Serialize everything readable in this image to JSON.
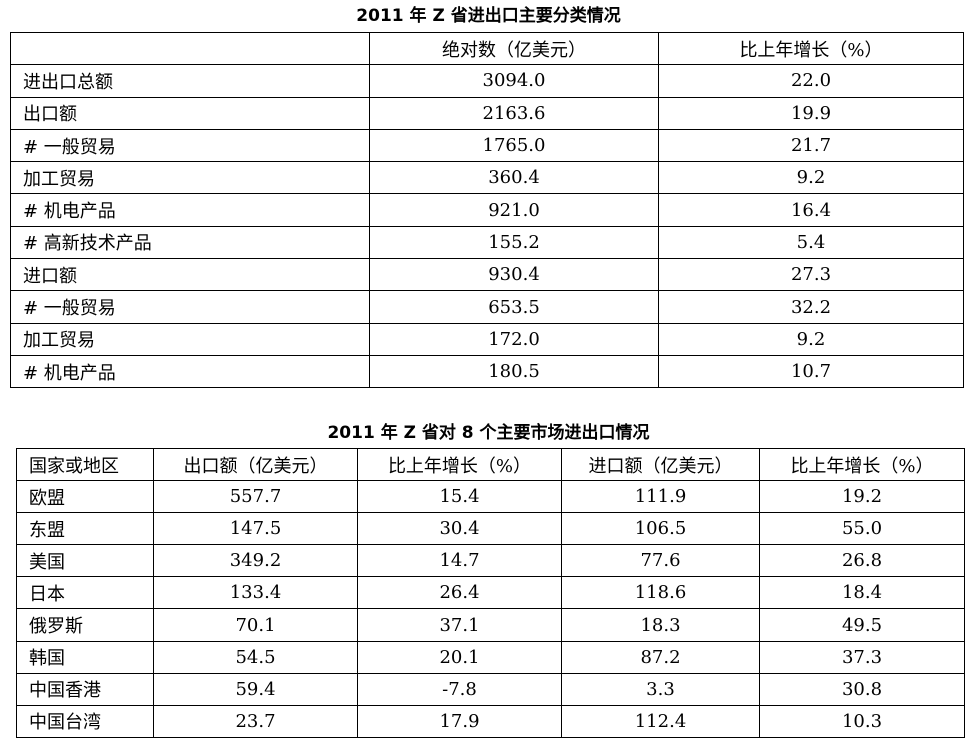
{
  "table1": {
    "title": "2011 年 Z 省进出口主要分类情况",
    "headers": [
      "",
      "绝对数（亿美元）",
      "比上年增长（%）"
    ],
    "rows": [
      [
        "进出口总额",
        "3094.0",
        "22.0"
      ],
      [
        "出口额",
        "2163.6",
        "19.9"
      ],
      [
        " # 一般贸易",
        "1765.0",
        "21.7"
      ],
      [
        "加工贸易",
        "360.4",
        "9.2"
      ],
      [
        " # 机电产品",
        "921.0",
        "16.4"
      ],
      [
        " # 高新技术产品",
        "155.2",
        "5.4"
      ],
      [
        "进口额",
        "930.4",
        "27.3"
      ],
      [
        " # 一般贸易",
        "653.5",
        "32.2"
      ],
      [
        "加工贸易",
        "172.0",
        "9.2"
      ],
      [
        " # 机电产品",
        "180.5",
        "10.7"
      ]
    ]
  },
  "table2": {
    "title": "2011 年 Z 省对 8 个主要市场进出口情况",
    "headers": [
      "国家或地区",
      "出口额（亿美元）",
      "比上年增长（%）",
      "进口额（亿美元）",
      "比上年增长（%）"
    ],
    "rows": [
      [
        "欧盟",
        "557.7",
        "15.4",
        "111.9",
        "19.2"
      ],
      [
        "东盟",
        "147.5",
        "30.4",
        "106.5",
        "55.0"
      ],
      [
        "美国",
        "349.2",
        "14.7",
        "77.6",
        "26.8"
      ],
      [
        "日本",
        "133.4",
        "26.4",
        "118.6",
        "18.4"
      ],
      [
        "俄罗斯",
        "70.1",
        "37.1",
        "18.3",
        "49.5"
      ],
      [
        "韩国",
        "54.5",
        "20.1",
        "87.2",
        "37.3"
      ],
      [
        "中国香港",
        "59.4",
        "-7.8",
        "3.3",
        "30.8"
      ],
      [
        "中国台湾",
        "23.7",
        "17.9",
        "112.4",
        "10.3"
      ]
    ]
  }
}
